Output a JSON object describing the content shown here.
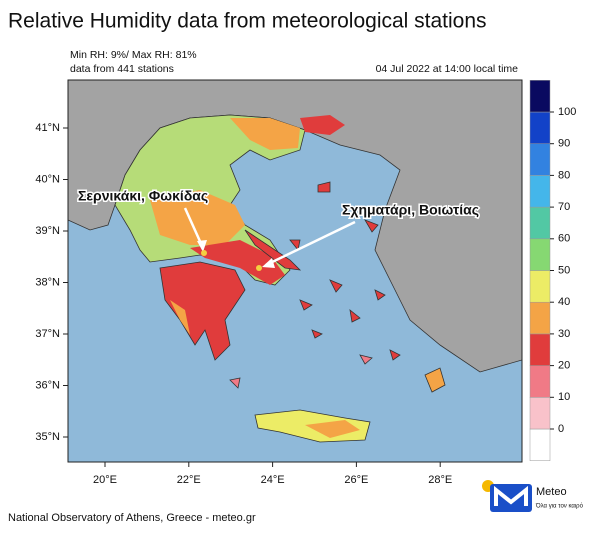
{
  "title": "Relative Humidity data from meteorological stations",
  "stats": "Min RH: 9%/ Max RH: 81%",
  "stations": "data from 441 stations",
  "timestamp": "04 Jul 2022 at 14:00 local time",
  "lon_ticks": [
    {
      "value": 20,
      "label": "20°E"
    },
    {
      "value": 22,
      "label": "22°E"
    },
    {
      "value": 24,
      "label": "24°E"
    },
    {
      "value": 26,
      "label": "26°E"
    },
    {
      "value": 28,
      "label": "28°E"
    }
  ],
  "lat_ticks": [
    {
      "value": 41,
      "label": "41°N"
    },
    {
      "value": 40,
      "label": "40°N"
    },
    {
      "value": 39,
      "label": "39°N"
    },
    {
      "value": 38,
      "label": "38°N"
    },
    {
      "value": 37,
      "label": "37°N"
    },
    {
      "value": 36,
      "label": "36°N"
    },
    {
      "value": 35,
      "label": "35°N"
    }
  ],
  "colorbar": {
    "levels": [
      0,
      10,
      20,
      30,
      40,
      50,
      60,
      70,
      80,
      90,
      100
    ],
    "colors": [
      "#ffffff",
      "#f9c2ca",
      "#f07a86",
      "#e03c3c",
      "#f4a446",
      "#ecec66",
      "#86d872",
      "#52c8a4",
      "#44b6ea",
      "#3282e0",
      "#1242c8",
      "#0a0a60"
    ]
  },
  "annotations": [
    "Σερνικάκι, Φωκίδας",
    "Σχηματάρι, Βοιωτίας"
  ],
  "footer": "National Observatory of Athens, Greece - meteo.gr",
  "logo": {
    "name": "Meteo",
    "tagline": "Όλα για τον καιρό"
  }
}
